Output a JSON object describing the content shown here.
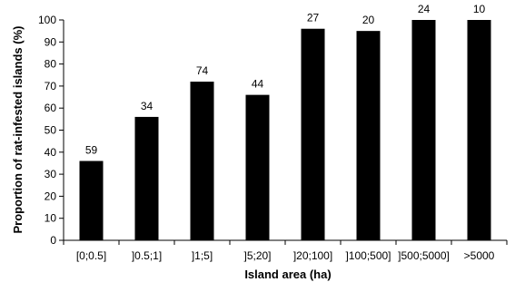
{
  "chart_data": {
    "type": "bar",
    "title": "",
    "xlabel": "Island area (ha)",
    "ylabel": "Proportion of rat-infested islands (%)",
    "ylim": [
      0,
      100
    ],
    "yticks": [
      0,
      10,
      20,
      30,
      40,
      50,
      60,
      70,
      80,
      90,
      100
    ],
    "grid": false,
    "legend": "none",
    "categories": [
      "[0;0.5]",
      "]0.5;1]",
      "]1;5]",
      "]5;20]",
      "]20;100]",
      "]100;500]",
      "]500;5000]",
      ">5000"
    ],
    "values": [
      36,
      56,
      72,
      66,
      96,
      95,
      100,
      100
    ],
    "data_labels": [
      "59",
      "34",
      "74",
      "44",
      "27",
      "20",
      "24",
      "10"
    ],
    "bar_color": "#000000"
  }
}
